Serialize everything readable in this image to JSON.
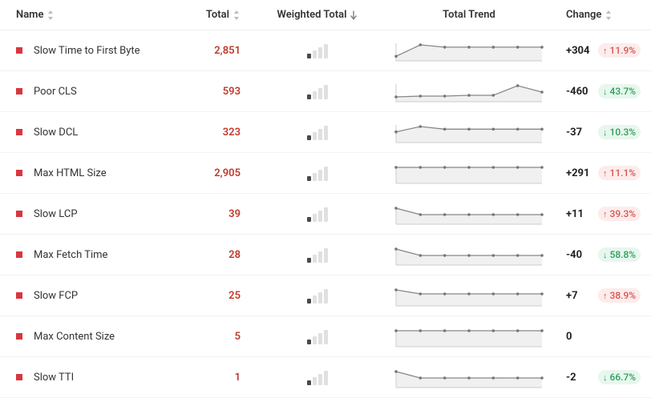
{
  "columns": {
    "name": "Name",
    "total": "Total",
    "weighted": "Weighted Total",
    "trend": "Total Trend",
    "change": "Change"
  },
  "colors": {
    "bullet": "#d9363e",
    "total_text": "#c0392b",
    "bar_active": "#4a4a4a",
    "bar_inactive": "#e0e0e0",
    "spark_stroke": "#888",
    "spark_fill": "#f0f0f0",
    "spark_dot": "#777",
    "badge_up_bg": "#fdecec",
    "badge_up_fg": "#d9534f",
    "badge_down_bg": "#e7f7ee",
    "badge_down_fg": "#2e9e5b",
    "sort_arrow": "#aaa"
  },
  "weighted_bars_heights": [
    6,
    10,
    14,
    18
  ],
  "rows": [
    {
      "name": "Slow Time to First Byte",
      "total": "2,851",
      "weighted_level": 1,
      "trend": [
        4,
        14,
        12,
        12,
        12,
        12,
        12
      ],
      "trend_baseline": 4,
      "change": "+304",
      "badge": {
        "dir": "up",
        "pct": "11.9%"
      }
    },
    {
      "name": "Poor CLS",
      "total": "593",
      "weighted_level": 1,
      "trend": [
        6,
        7,
        7,
        8,
        8,
        20,
        12
      ],
      "trend_baseline": 2,
      "change": "-460",
      "badge": {
        "dir": "down",
        "pct": "43.7%"
      }
    },
    {
      "name": "Slow DCL",
      "total": "323",
      "weighted_level": 1,
      "trend": [
        4,
        6,
        5,
        5,
        5,
        5,
        5
      ],
      "trend_baseline": 3,
      "change": "-37",
      "badge": {
        "dir": "down",
        "pct": "10.3%"
      }
    },
    {
      "name": "Max HTML Size",
      "total": "2,905",
      "weighted_level": 1,
      "trend": [
        4,
        4,
        4,
        4,
        4,
        4,
        4
      ],
      "trend_baseline": 3,
      "change": "+291",
      "badge": {
        "dir": "up",
        "pct": "11.1%"
      }
    },
    {
      "name": "Slow LCP",
      "total": "39",
      "weighted_level": 1,
      "trend": [
        5,
        3,
        3,
        3,
        3,
        3,
        3
      ],
      "trend_baseline": 2,
      "change": "+11",
      "badge": {
        "dir": "up",
        "pct": "39.3%"
      }
    },
    {
      "name": "Max Fetch Time",
      "total": "28",
      "weighted_level": 1,
      "trend": [
        5,
        3,
        3,
        3,
        3,
        3,
        3
      ],
      "trend_baseline": 2,
      "change": "-40",
      "badge": {
        "dir": "down",
        "pct": "58.8%"
      }
    },
    {
      "name": "Slow FCP",
      "total": "25",
      "weighted_level": 1,
      "trend": [
        4,
        3,
        3,
        3,
        3,
        3,
        3
      ],
      "trend_baseline": 2,
      "change": "+7",
      "badge": {
        "dir": "up",
        "pct": "38.9%"
      }
    },
    {
      "name": "Max Content Size",
      "total": "5",
      "weighted_level": 1,
      "trend": [
        10,
        10,
        10,
        10,
        10,
        10,
        10
      ],
      "trend_baseline": 2,
      "change": "0",
      "badge": null
    },
    {
      "name": "Slow TTI",
      "total": "1",
      "weighted_level": 1,
      "trend": [
        5,
        3,
        3,
        3,
        3,
        3,
        3
      ],
      "trend_baseline": 2,
      "change": "-2",
      "badge": {
        "dir": "down",
        "pct": "66.7%"
      }
    }
  ]
}
